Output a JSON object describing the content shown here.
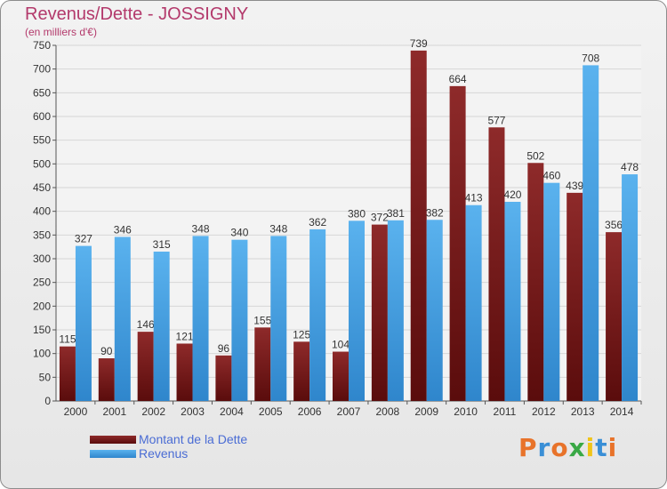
{
  "header": {
    "title": "Revenus/Dette - JOSSIGNY",
    "subtitle": "(en milliers d'€)"
  },
  "logo": {
    "text": "Proxiti",
    "colors": [
      "#e8732a",
      "#3a8fd6",
      "#e8732a",
      "#39a845",
      "#f0c419",
      "#3a8fd6",
      "#e8732a"
    ]
  },
  "chart_data": {
    "type": "bar",
    "title": "Revenus/Dette - JOSSIGNY",
    "subtitle": "(en milliers d'€)",
    "categories": [
      "2000",
      "2001",
      "2002",
      "2003",
      "2004",
      "2005",
      "2006",
      "2007",
      "2008",
      "2009",
      "2010",
      "2011",
      "2012",
      "2013",
      "2014"
    ],
    "series": [
      {
        "name": "Montant de la Dette",
        "color": "#7a1e1e",
        "values": [
          115,
          90,
          146,
          121,
          96,
          155,
          125,
          104,
          372,
          739,
          664,
          577,
          502,
          439,
          356
        ]
      },
      {
        "name": "Revenus",
        "color": "#4aa3e3",
        "values": [
          327,
          346,
          315,
          348,
          340,
          348,
          362,
          380,
          381,
          382,
          413,
          420,
          460,
          708,
          478
        ]
      }
    ],
    "ylim": [
      0,
      750
    ],
    "yticks": [
      0,
      50,
      100,
      150,
      200,
      250,
      300,
      350,
      400,
      450,
      500,
      550,
      600,
      650,
      700,
      750
    ],
    "grid": true,
    "legend_position": "bottom-left"
  }
}
